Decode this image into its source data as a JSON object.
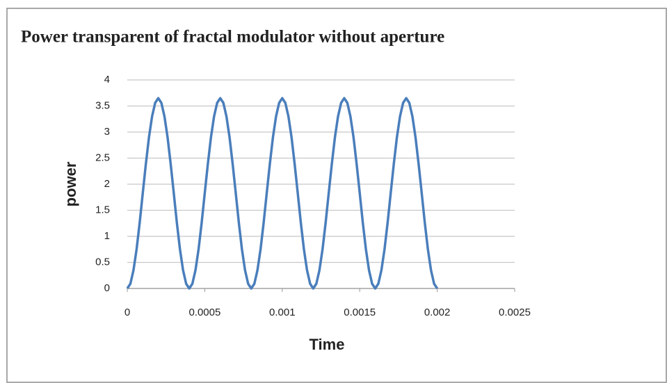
{
  "chart_data": {
    "type": "line",
    "title": "Power transparent of fractal modulator without aperture",
    "x_label": "Time",
    "y_label": "power",
    "x": [
      0,
      2e-05,
      4e-05,
      6e-05,
      8e-05,
      0.0001,
      0.00012,
      0.00014,
      0.00016,
      0.00018,
      0.0002,
      0.00022,
      0.00024,
      0.00026,
      0.00028,
      0.0003,
      0.00032,
      0.00034,
      0.00036,
      0.00038,
      0.0004,
      0.00042,
      0.00044,
      0.00046,
      0.00048,
      0.0005,
      0.00052,
      0.00054,
      0.00056,
      0.00058,
      0.0006,
      0.00062,
      0.00064,
      0.00066,
      0.00068,
      0.0007,
      0.00072,
      0.00074,
      0.00076,
      0.00078,
      0.0008,
      0.00082,
      0.00084,
      0.00086,
      0.00088,
      0.0009,
      0.00092,
      0.00094,
      0.00096,
      0.00098,
      0.001,
      0.00102,
      0.00104,
      0.00106,
      0.00108,
      0.0011,
      0.00112,
      0.00114,
      0.00116,
      0.00118,
      0.0012,
      0.00122,
      0.00124,
      0.00126,
      0.00128,
      0.0013,
      0.00132,
      0.00134,
      0.00136,
      0.00138,
      0.0014,
      0.00142,
      0.00144,
      0.00146,
      0.00148,
      0.0015,
      0.00152,
      0.00154,
      0.00156,
      0.00158,
      0.0016,
      0.00162,
      0.00164,
      0.00166,
      0.00168,
      0.0017,
      0.00172,
      0.00174,
      0.00176,
      0.00178,
      0.0018,
      0.00182,
      0.00184,
      0.00186,
      0.00188,
      0.0019,
      0.00192,
      0.00194,
      0.00196,
      0.00198,
      0.002
    ],
    "series": [
      {
        "name": "power",
        "color": "#4a7ebb",
        "values": [
          0,
          0.09,
          0.35,
          0.75,
          1.26,
          1.83,
          2.39,
          2.9,
          3.3,
          3.56,
          3.65,
          3.56,
          3.3,
          2.9,
          2.39,
          1.83,
          1.26,
          0.75,
          0.35,
          0.09,
          0,
          0.09,
          0.35,
          0.75,
          1.26,
          1.83,
          2.39,
          2.9,
          3.3,
          3.56,
          3.65,
          3.56,
          3.3,
          2.9,
          2.39,
          1.83,
          1.26,
          0.75,
          0.35,
          0.09,
          0,
          0.09,
          0.35,
          0.75,
          1.26,
          1.83,
          2.39,
          2.9,
          3.3,
          3.56,
          3.65,
          3.56,
          3.3,
          2.9,
          2.39,
          1.83,
          1.26,
          0.75,
          0.35,
          0.09,
          0,
          0.09,
          0.35,
          0.75,
          1.26,
          1.83,
          2.39,
          2.9,
          3.3,
          3.56,
          3.65,
          3.56,
          3.3,
          2.9,
          2.39,
          1.83,
          1.26,
          0.75,
          0.35,
          0.09,
          0,
          0.09,
          0.35,
          0.75,
          1.26,
          1.83,
          2.39,
          2.9,
          3.3,
          3.56,
          3.65,
          3.56,
          3.3,
          2.9,
          2.39,
          1.83,
          1.26,
          0.75,
          0.35,
          0.09,
          0
        ]
      }
    ],
    "xlim": [
      0,
      0.0025
    ],
    "xticks": [
      0,
      0.0005,
      0.001,
      0.0015,
      0.002,
      0.0025
    ],
    "ylim": [
      0,
      4
    ],
    "yticks": [
      0,
      0.5,
      1,
      1.5,
      2,
      2.5,
      3,
      3.5,
      4
    ],
    "grid": true
  }
}
